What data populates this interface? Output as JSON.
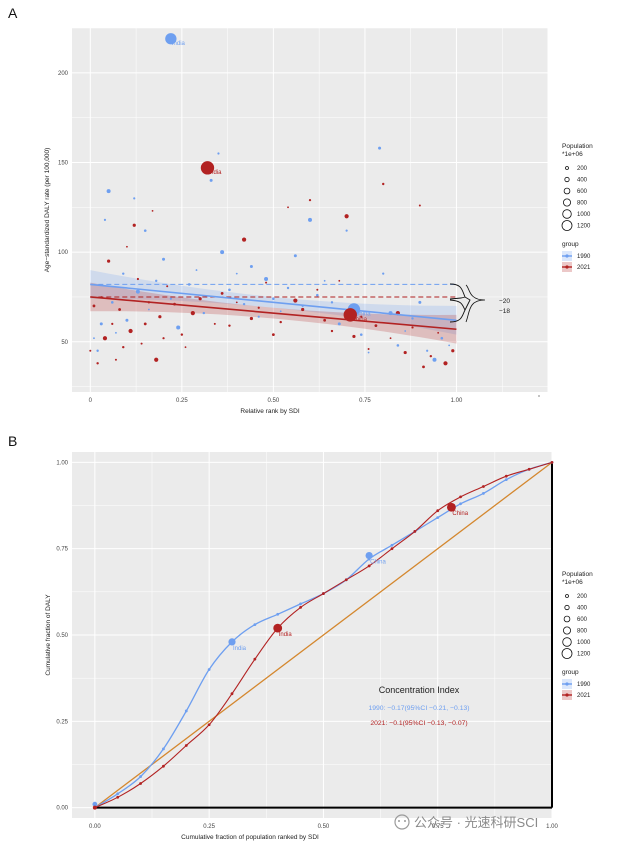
{
  "panels": {
    "a": {
      "letter": "A",
      "ylabel": "Age−standardized DALY rate (per 100,000)",
      "xlabel": "Relative rank by SDI",
      "xticks": [
        "0",
        "0.25",
        "0.50",
        "0.75",
        "1.00"
      ],
      "yticks": [
        "50",
        "100",
        "150",
        "200"
      ],
      "brackets": {
        "upper": "−20",
        "lower": "−18"
      }
    },
    "b": {
      "letter": "B",
      "ylabel": "Cumulative fraction of DALY",
      "xlabel": "Cumulative fraction of population ranked by SDI",
      "xticks": [
        "0.00",
        "0.25",
        "0.50",
        "0.75",
        "1.00"
      ],
      "yticks": [
        "0.00",
        "0.25",
        "0.50",
        "0.75",
        "1.00"
      ],
      "ci_title": "Concentration Index",
      "ci_1990": "1990: −0.17(95%CI −0.21, −0.13)",
      "ci_2021": "2021: −0.1(95%CI −0.13, −0.07)"
    }
  },
  "legend": {
    "pop_title_1": "Population",
    "pop_title_2": "*1e+06",
    "pop_sizes": [
      "200",
      "400",
      "600",
      "800",
      "1000",
      "1200"
    ],
    "group_title": "group",
    "groups": [
      "1990",
      "2021"
    ]
  },
  "labels": {
    "india": "India",
    "china": "China"
  },
  "colors": {
    "c1990": "#6e9ff0",
    "c2021": "#b22222",
    "equality": "#d4872e",
    "panel_bg": "#ebebeb",
    "grid": "#ffffff"
  },
  "watermark": "公众号 · 光速科研SCI",
  "chart_data": [
    {
      "type": "scatter",
      "x_range": [
        -0.05,
        1.25
      ],
      "y_range": [
        22,
        225
      ],
      "fit_1990": {
        "start": [
          0,
          82
        ],
        "end": [
          1,
          62
        ]
      },
      "fit_2021": {
        "start": [
          0,
          75
        ],
        "end": [
          1,
          57
        ]
      },
      "reference_lines": {
        "1990": 82,
        "2021": 75
      },
      "highlighted": [
        {
          "name": "India",
          "group": "1990",
          "x": 0.22,
          "y": 219,
          "pop": 860
        },
        {
          "name": "India",
          "group": "2021",
          "x": 0.32,
          "y": 147,
          "pop": 1400
        },
        {
          "name": "China",
          "group": "1990",
          "x": 0.72,
          "y": 68,
          "pop": 1150
        },
        {
          "name": "China",
          "group": "2021",
          "x": 0.71,
          "y": 65,
          "pop": 1420
        }
      ],
      "points_1990": [
        [
          0.01,
          52
        ],
        [
          0.02,
          45
        ],
        [
          0.03,
          60
        ],
        [
          0.04,
          118
        ],
        [
          0.05,
          134
        ],
        [
          0.06,
          72
        ],
        [
          0.07,
          55
        ],
        [
          0.09,
          88
        ],
        [
          0.1,
          62
        ],
        [
          0.12,
          130
        ],
        [
          0.13,
          78
        ],
        [
          0.15,
          112
        ],
        [
          0.16,
          68
        ],
        [
          0.18,
          84
        ],
        [
          0.2,
          96
        ],
        [
          0.22,
          74
        ],
        [
          0.24,
          58
        ],
        [
          0.27,
          82
        ],
        [
          0.29,
          90
        ],
        [
          0.31,
          66
        ],
        [
          0.33,
          140
        ],
        [
          0.35,
          155
        ],
        [
          0.36,
          100
        ],
        [
          0.38,
          79
        ],
        [
          0.4,
          88
        ],
        [
          0.42,
          71
        ],
        [
          0.44,
          92
        ],
        [
          0.46,
          64
        ],
        [
          0.48,
          85
        ],
        [
          0.5,
          74
        ],
        [
          0.52,
          67
        ],
        [
          0.54,
          80
        ],
        [
          0.56,
          98
        ],
        [
          0.58,
          70
        ],
        [
          0.6,
          118
        ],
        [
          0.62,
          76
        ],
        [
          0.64,
          84
        ],
        [
          0.66,
          72
        ],
        [
          0.68,
          60
        ],
        [
          0.7,
          112
        ],
        [
          0.72,
          68
        ],
        [
          0.74,
          54
        ],
        [
          0.76,
          44
        ],
        [
          0.78,
          59
        ],
        [
          0.79,
          158
        ],
        [
          0.8,
          88
        ],
        [
          0.82,
          66
        ],
        [
          0.84,
          48
        ],
        [
          0.86,
          56
        ],
        [
          0.88,
          63
        ],
        [
          0.9,
          72
        ],
        [
          0.92,
          45
        ],
        [
          0.94,
          40
        ],
        [
          0.96,
          52
        ],
        [
          0.98,
          48
        ]
      ],
      "points_2021": [
        [
          0.0,
          45
        ],
        [
          0.01,
          70
        ],
        [
          0.02,
          38
        ],
        [
          0.03,
          75
        ],
        [
          0.04,
          52
        ],
        [
          0.05,
          95
        ],
        [
          0.06,
          60
        ],
        [
          0.07,
          40
        ],
        [
          0.08,
          68
        ],
        [
          0.09,
          47
        ],
        [
          0.1,
          103
        ],
        [
          0.11,
          56
        ],
        [
          0.12,
          115
        ],
        [
          0.13,
          85
        ],
        [
          0.14,
          49
        ],
        [
          0.15,
          60
        ],
        [
          0.16,
          72
        ],
        [
          0.17,
          123
        ],
        [
          0.18,
          40
        ],
        [
          0.19,
          64
        ],
        [
          0.2,
          52
        ],
        [
          0.21,
          81
        ],
        [
          0.23,
          71
        ],
        [
          0.25,
          54
        ],
        [
          0.26,
          47
        ],
        [
          0.28,
          66
        ],
        [
          0.3,
          74
        ],
        [
          0.32,
          147
        ],
        [
          0.34,
          60
        ],
        [
          0.36,
          77
        ],
        [
          0.38,
          59
        ],
        [
          0.4,
          72
        ],
        [
          0.42,
          107
        ],
        [
          0.44,
          63
        ],
        [
          0.46,
          69
        ],
        [
          0.48,
          83
        ],
        [
          0.5,
          54
        ],
        [
          0.52,
          61
        ],
        [
          0.54,
          125
        ],
        [
          0.56,
          73
        ],
        [
          0.58,
          68
        ],
        [
          0.6,
          129
        ],
        [
          0.62,
          79
        ],
        [
          0.64,
          62
        ],
        [
          0.66,
          56
        ],
        [
          0.68,
          84
        ],
        [
          0.7,
          120
        ],
        [
          0.72,
          53
        ],
        [
          0.74,
          64
        ],
        [
          0.76,
          46
        ],
        [
          0.78,
          59
        ],
        [
          0.8,
          138
        ],
        [
          0.82,
          52
        ],
        [
          0.84,
          66
        ],
        [
          0.86,
          44
        ],
        [
          0.88,
          58
        ],
        [
          0.9,
          126
        ],
        [
          0.91,
          36
        ],
        [
          0.93,
          42
        ],
        [
          0.95,
          55
        ],
        [
          0.97,
          38
        ],
        [
          0.99,
          45
        ]
      ]
    },
    {
      "type": "line",
      "x_range": [
        -0.05,
        1.0
      ],
      "y_range": [
        -0.03,
        1.03
      ],
      "curve_1990": [
        [
          0,
          0
        ],
        [
          0.05,
          0.04
        ],
        [
          0.1,
          0.09
        ],
        [
          0.15,
          0.17
        ],
        [
          0.2,
          0.28
        ],
        [
          0.25,
          0.4
        ],
        [
          0.3,
          0.48
        ],
        [
          0.35,
          0.53
        ],
        [
          0.4,
          0.56
        ],
        [
          0.45,
          0.59
        ],
        [
          0.5,
          0.62
        ],
        [
          0.55,
          0.66
        ],
        [
          0.6,
          0.72
        ],
        [
          0.65,
          0.76
        ],
        [
          0.7,
          0.8
        ],
        [
          0.75,
          0.84
        ],
        [
          0.8,
          0.88
        ],
        [
          0.85,
          0.91
        ],
        [
          0.9,
          0.95
        ],
        [
          0.95,
          0.98
        ],
        [
          1,
          1
        ]
      ],
      "curve_2021": [
        [
          0,
          0
        ],
        [
          0.05,
          0.03
        ],
        [
          0.1,
          0.07
        ],
        [
          0.15,
          0.12
        ],
        [
          0.2,
          0.18
        ],
        [
          0.25,
          0.24
        ],
        [
          0.3,
          0.33
        ],
        [
          0.35,
          0.43
        ],
        [
          0.4,
          0.52
        ],
        [
          0.45,
          0.58
        ],
        [
          0.5,
          0.62
        ],
        [
          0.55,
          0.66
        ],
        [
          0.6,
          0.7
        ],
        [
          0.65,
          0.75
        ],
        [
          0.7,
          0.8
        ],
        [
          0.75,
          0.86
        ],
        [
          0.8,
          0.9
        ],
        [
          0.85,
          0.93
        ],
        [
          0.9,
          0.96
        ],
        [
          0.95,
          0.98
        ],
        [
          1,
          1
        ]
      ],
      "highlighted": [
        {
          "name": "India",
          "group": "1990",
          "x": 0.3,
          "y": 0.48
        },
        {
          "name": "India",
          "group": "2021",
          "x": 0.4,
          "y": 0.52
        },
        {
          "name": "China",
          "group": "1990",
          "x": 0.6,
          "y": 0.73
        },
        {
          "name": "China",
          "group": "2021",
          "x": 0.78,
          "y": 0.87
        }
      ]
    }
  ]
}
